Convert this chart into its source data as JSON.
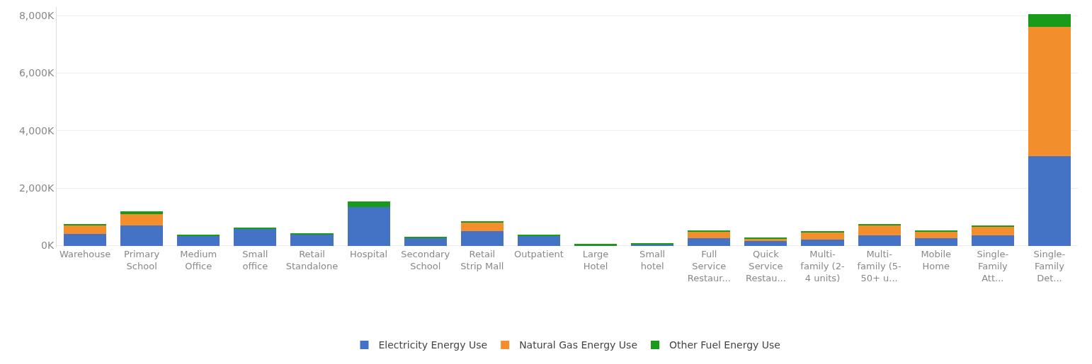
{
  "chart_data": {
    "type": "bar",
    "stacked": true,
    "categories": [
      "Warehouse",
      "Primary School",
      "Medium Office",
      "Small office",
      "Retail Standalone",
      "Hospital",
      "Secondary School",
      "Retail Strip Mall",
      "Outpatient",
      "Large Hotel",
      "Small hotel",
      "Full Service Restaur...",
      "Quick Service Restau...",
      "Multi-family (2-4 units)",
      "Multi-family (5-50+ u...",
      "Mobile Home",
      "Single-Family Att...",
      "Single-Family Det..."
    ],
    "series": [
      {
        "name": "Electricity Energy Use",
        "color": "#4472c4",
        "values": [
          400,
          700,
          350,
          600,
          400,
          1350,
          250,
          500,
          350,
          null,
          40,
          250,
          150,
          200,
          350,
          250,
          350,
          3100
        ]
      },
      {
        "name": "Natural Gas Energy Use",
        "color": "#f28e2b",
        "values": [
          300,
          400,
          null,
          null,
          null,
          null,
          null,
          300,
          null,
          null,
          null,
          250,
          100,
          250,
          350,
          250,
          300,
          4500
        ]
      },
      {
        "name": "Other Fuel Energy Use",
        "color": "#1a9a1a",
        "values": [
          60,
          100,
          20,
          30,
          40,
          200,
          60,
          60,
          40,
          60,
          30,
          40,
          30,
          60,
          60,
          40,
          60,
          450
        ]
      }
    ],
    "ylim": [
      -60,
      8300
    ],
    "yticks": [
      {
        "value": 0,
        "label": "0K"
      },
      {
        "value": 2000,
        "label": "2,000K"
      },
      {
        "value": 4000,
        "label": "4,000K"
      },
      {
        "value": 6000,
        "label": "6,000K"
      },
      {
        "value": 8000,
        "label": "8,000K"
      }
    ],
    "grid": "y",
    "legend": "bottom"
  }
}
